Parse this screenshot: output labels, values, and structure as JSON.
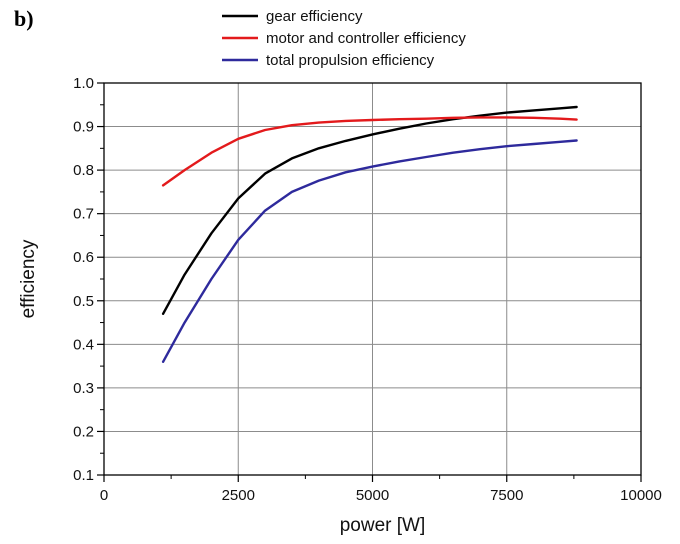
{
  "panel_label": "b)",
  "chart_data": {
    "type": "line",
    "title": "",
    "xlabel": "power [W]",
    "ylabel": "efficiency",
    "xlim": [
      0,
      10000
    ],
    "ylim": [
      0.1,
      1.0
    ],
    "x_ticks": [
      0,
      2500,
      5000,
      7500,
      10000
    ],
    "y_ticks": [
      0.1,
      0.2,
      0.3,
      0.4,
      0.5,
      0.6,
      0.7,
      0.8,
      0.9,
      1.0
    ],
    "x_tick_labels": [
      "0",
      "2500",
      "5000",
      "7500",
      "10000"
    ],
    "y_tick_labels": [
      "0.1",
      "0.2",
      "0.3",
      "0.4",
      "0.5",
      "0.6",
      "0.7",
      "0.8",
      "0.9",
      "1.0"
    ],
    "grid": true,
    "legend_position": "top",
    "series": [
      {
        "name": "gear efficiency",
        "color": "#000000",
        "x": [
          1100,
          1500,
          2000,
          2500,
          3000,
          3500,
          4000,
          4500,
          5000,
          5500,
          6000,
          6500,
          7000,
          7500,
          8000,
          8500,
          8800
        ],
        "y": [
          0.47,
          0.56,
          0.655,
          0.735,
          0.792,
          0.827,
          0.85,
          0.867,
          0.882,
          0.895,
          0.907,
          0.917,
          0.925,
          0.932,
          0.937,
          0.942,
          0.945
        ]
      },
      {
        "name": "motor and controller efficiency",
        "color": "#e31a1c",
        "x": [
          1100,
          1500,
          2000,
          2500,
          3000,
          3500,
          4000,
          4500,
          5000,
          5500,
          6000,
          6500,
          7000,
          7500,
          8000,
          8500,
          8800
        ],
        "y": [
          0.765,
          0.8,
          0.84,
          0.872,
          0.892,
          0.903,
          0.909,
          0.913,
          0.915,
          0.917,
          0.918,
          0.92,
          0.921,
          0.921,
          0.92,
          0.918,
          0.916
        ]
      },
      {
        "name": "total propulsion efficiency",
        "color": "#2e2a9c",
        "x": [
          1100,
          1500,
          2000,
          2500,
          3000,
          3500,
          4000,
          4500,
          5000,
          5500,
          6000,
          6500,
          7000,
          7500,
          8000,
          8500,
          8800
        ],
        "y": [
          0.36,
          0.45,
          0.55,
          0.64,
          0.707,
          0.75,
          0.776,
          0.795,
          0.808,
          0.82,
          0.83,
          0.84,
          0.848,
          0.855,
          0.86,
          0.865,
          0.868
        ]
      }
    ]
  }
}
